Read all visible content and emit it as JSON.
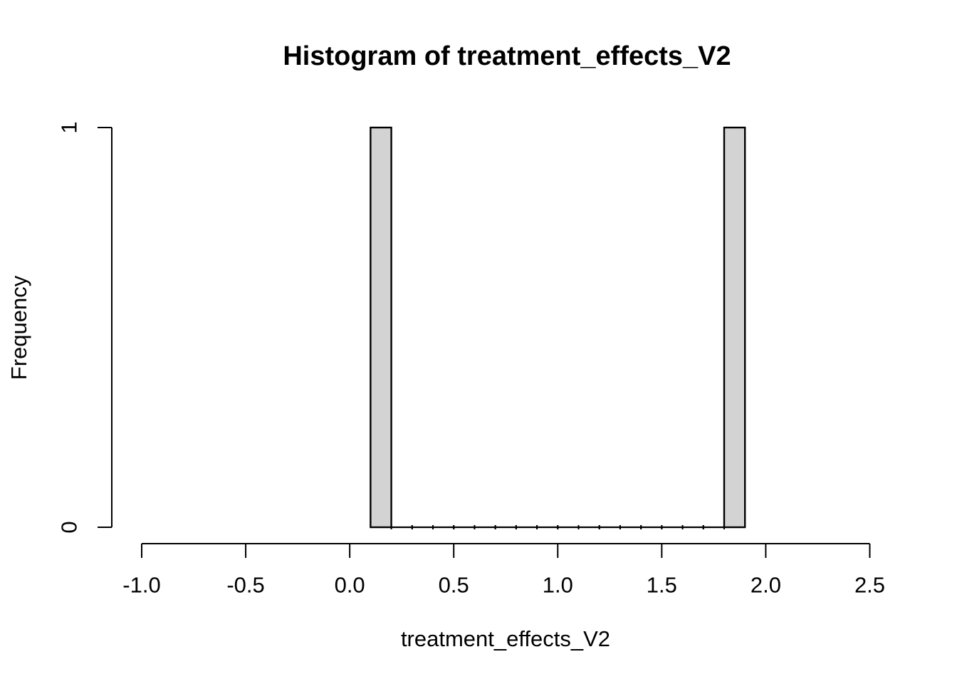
{
  "figure": {
    "title": "Histogram of treatment_effects_V2",
    "x_axis_label": "treatment_effects_V2",
    "y_axis_label": "Frequency"
  },
  "chart_data": {
    "type": "bar",
    "subtype": "histogram",
    "title": "Histogram of treatment_effects_V2",
    "xlabel": "treatment_effects_V2",
    "ylabel": "Frequency",
    "xlim": [
      -1.0,
      2.5
    ],
    "ylim": [
      0,
      1
    ],
    "x_tick_values": [
      -1.0,
      -0.5,
      0.0,
      0.5,
      1.0,
      1.5,
      2.0,
      2.5
    ],
    "x_tick_labels": [
      "-1.0",
      "-0.5",
      "0.0",
      "0.5",
      "1.0",
      "1.5",
      "2.0",
      "2.5"
    ],
    "y_tick_values": [
      0,
      1
    ],
    "y_tick_labels": [
      "0",
      "1"
    ],
    "bin_edges": [
      0.1,
      0.2,
      0.3,
      0.4,
      0.5,
      0.6,
      0.7,
      0.8,
      0.9,
      1.0,
      1.1,
      1.2,
      1.3,
      1.4,
      1.5,
      1.6,
      1.7,
      1.8,
      1.9
    ],
    "counts": [
      1,
      0,
      0,
      0,
      0,
      0,
      0,
      0,
      0,
      0,
      0,
      0,
      0,
      0,
      0,
      0,
      0,
      1
    ],
    "bar_fill": "#D3D3D3",
    "bar_stroke": "#000000",
    "axis_color": "#000000",
    "grid": false,
    "legend": null
  }
}
